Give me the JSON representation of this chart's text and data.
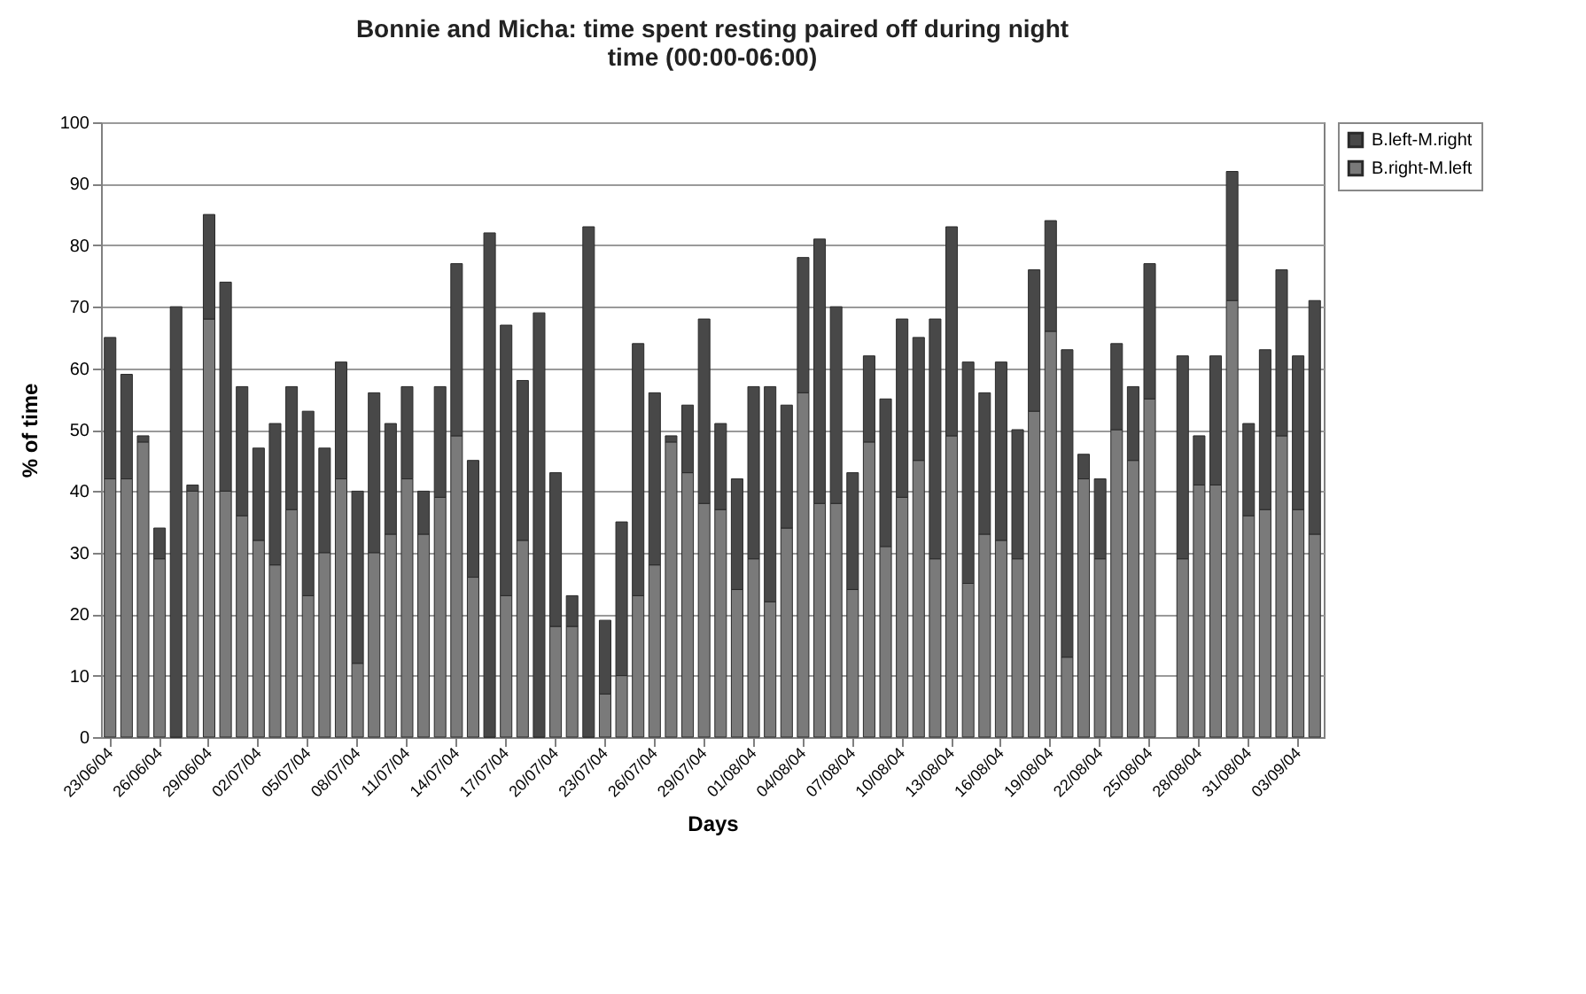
{
  "chart_data": {
    "type": "bar",
    "stacked": true,
    "title": "Bonnie and Micha: time spent resting paired off during night time  (00:00-06:00)",
    "xlabel": "Days",
    "ylabel": "% of time",
    "categories": [
      "23/06/04",
      null,
      null,
      "26/06/04",
      null,
      null,
      "29/06/04",
      null,
      null,
      "02/07/04",
      null,
      null,
      "05/07/04",
      null,
      null,
      "08/07/04",
      null,
      null,
      "11/07/04",
      null,
      null,
      "14/07/04",
      null,
      null,
      "17/07/04",
      null,
      null,
      "20/07/04",
      null,
      null,
      "23/07/04",
      null,
      null,
      "26/07/04",
      null,
      null,
      "29/07/04",
      null,
      null,
      "01/08/04",
      null,
      null,
      "04/08/04",
      null,
      null,
      "07/08/04",
      null,
      null,
      "10/08/04",
      null,
      null,
      "13/08/04",
      null,
      null,
      "16/08/04",
      null,
      null,
      "19/08/04",
      null,
      null,
      "22/08/04",
      null,
      null,
      "25/08/04",
      null,
      null,
      "28/08/04",
      null,
      null,
      "31/08/04",
      null,
      null,
      "03/09/04",
      null
    ],
    "series": [
      {
        "name": "B.right-M.left",
        "color": "#7a7a7a",
        "values": [
          42,
          42,
          48,
          29,
          0,
          40,
          68,
          40,
          36,
          32,
          28,
          37,
          23,
          30,
          42,
          12,
          30,
          33,
          42,
          33,
          39,
          49,
          26,
          0,
          23,
          32,
          0,
          18,
          18,
          0,
          7,
          10,
          23,
          28,
          48,
          43,
          38,
          37,
          24,
          29,
          22,
          34,
          56,
          38,
          38,
          24,
          48,
          31,
          39,
          45,
          29,
          49,
          25,
          33,
          32,
          29,
          53,
          66,
          13,
          42,
          29,
          50,
          45,
          55,
          null,
          29,
          41,
          41,
          71,
          36,
          37,
          49,
          37,
          33
        ]
      },
      {
        "name": "B.left-M.right",
        "color": "#484848",
        "values": [
          23,
          17,
          1,
          5,
          70,
          1,
          17,
          34,
          21,
          15,
          23,
          20,
          30,
          17,
          19,
          28,
          26,
          18,
          15,
          7,
          18,
          28,
          19,
          82,
          44,
          26,
          69,
          25,
          5,
          83,
          12,
          25,
          41,
          28,
          1,
          11,
          30,
          14,
          18,
          28,
          35,
          20,
          22,
          43,
          32,
          19,
          14,
          24,
          29,
          20,
          39,
          34,
          36,
          23,
          29,
          21,
          23,
          18,
          50,
          4,
          13,
          14,
          12,
          22,
          null,
          33,
          8,
          21,
          21,
          15,
          26,
          27,
          25,
          38
        ]
      }
    ],
    "ylim": [
      0,
      100
    ],
    "yticks": [
      0,
      10,
      20,
      30,
      40,
      50,
      60,
      70,
      80,
      90,
      100
    ],
    "grid": "y",
    "legend": "right"
  }
}
